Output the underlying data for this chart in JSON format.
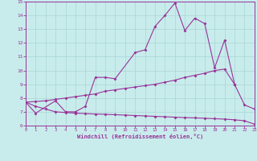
{
  "xlabel": "Windchill (Refroidissement éolien,°C)",
  "bg_color": "#c8ecec",
  "grid_color": "#aad4d4",
  "line_color": "#993399",
  "line1_x": [
    0,
    1,
    3,
    4,
    5,
    6,
    7,
    8,
    9,
    11,
    12,
    13,
    14,
    15,
    16,
    17,
    18,
    19,
    20,
    21
  ],
  "line1_y": [
    7.7,
    6.9,
    7.8,
    7.0,
    7.0,
    7.4,
    9.5,
    9.5,
    9.4,
    11.3,
    11.5,
    13.2,
    14.0,
    14.9,
    12.9,
    13.8,
    13.4,
    10.2,
    12.2,
    9.0
  ],
  "line2_x": [
    0,
    1,
    2,
    3,
    4,
    5,
    6,
    7,
    8,
    9,
    10,
    11,
    12,
    13,
    14,
    15,
    16,
    17,
    18,
    19,
    20,
    21,
    22,
    23
  ],
  "line2_y": [
    7.7,
    7.75,
    7.8,
    7.9,
    8.0,
    8.1,
    8.2,
    8.3,
    8.5,
    8.6,
    8.7,
    8.8,
    8.9,
    9.0,
    9.15,
    9.3,
    9.5,
    9.65,
    9.8,
    10.0,
    10.1,
    9.0,
    7.5,
    7.2
  ],
  "line3_x": [
    0,
    1,
    2,
    3,
    4,
    5,
    6,
    7,
    8,
    9,
    10,
    11,
    12,
    13,
    14,
    15,
    16,
    17,
    18,
    19,
    20,
    21,
    22,
    23
  ],
  "line3_y": [
    7.7,
    7.4,
    7.2,
    7.0,
    6.95,
    6.9,
    6.87,
    6.84,
    6.82,
    6.79,
    6.76,
    6.73,
    6.7,
    6.67,
    6.64,
    6.61,
    6.58,
    6.56,
    6.53,
    6.5,
    6.47,
    6.42,
    6.35,
    6.1
  ],
  "ylim": [
    6,
    15
  ],
  "xlim": [
    0,
    23
  ],
  "yticks": [
    6,
    7,
    8,
    9,
    10,
    11,
    12,
    13,
    14,
    15
  ],
  "xticks": [
    0,
    1,
    2,
    3,
    4,
    5,
    6,
    7,
    8,
    9,
    10,
    11,
    12,
    13,
    14,
    15,
    16,
    17,
    18,
    19,
    20,
    21,
    22,
    23
  ]
}
